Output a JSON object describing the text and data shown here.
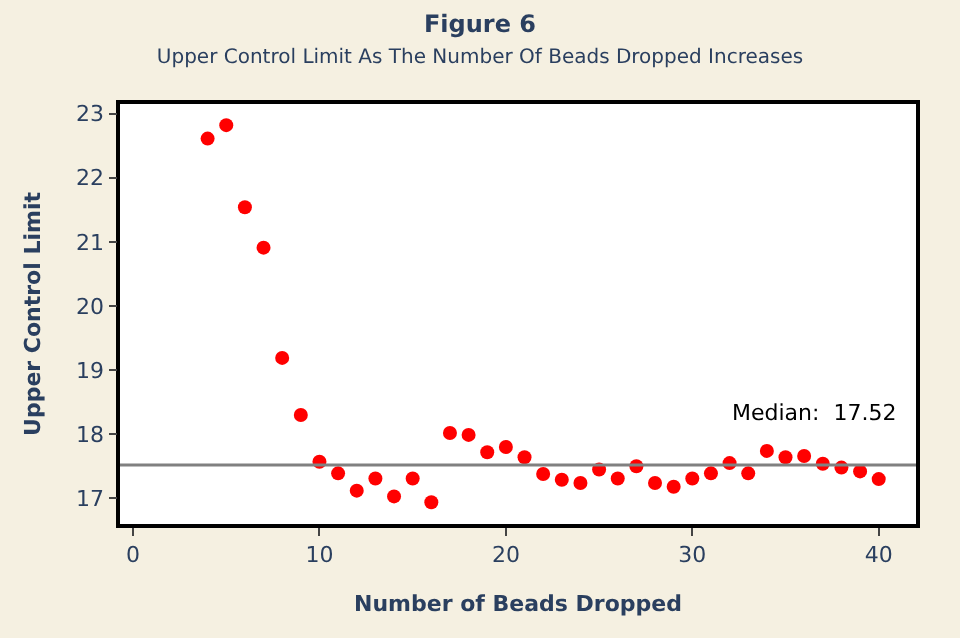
{
  "chart_data": {
    "type": "scatter",
    "title": "Figure 6",
    "subtitle": "Upper Control Limit As The Number Of Beads Dropped Increases",
    "xlabel": "Number of Beads Dropped",
    "ylabel": "Upper Control Limit",
    "x": [
      4,
      5,
      6,
      7,
      8,
      9,
      10,
      11,
      12,
      13,
      14,
      15,
      16,
      17,
      18,
      19,
      20,
      21,
      22,
      23,
      24,
      25,
      26,
      27,
      28,
      29,
      30,
      31,
      32,
      33,
      34,
      35,
      36,
      37,
      38,
      39,
      40
    ],
    "series": [
      {
        "color": "#ff0000",
        "values": [
          22.61,
          22.82,
          21.54,
          20.91,
          19.19,
          18.3,
          17.57,
          17.39,
          17.12,
          17.31,
          17.03,
          17.31,
          16.94,
          18.02,
          17.99,
          17.72,
          17.8,
          17.64,
          17.38,
          17.29,
          17.24,
          17.45,
          17.31,
          17.5,
          17.24,
          17.18,
          17.31,
          17.39,
          17.55,
          17.39,
          17.74,
          17.64,
          17.66,
          17.54,
          17.48,
          17.42,
          17.3
        ]
      }
    ],
    "xlim": [
      -0.7,
      42
    ],
    "ylim": [
      16.6,
      23.15
    ],
    "xticks": [
      0,
      10,
      20,
      30,
      40
    ],
    "yticks": [
      17,
      18,
      19,
      20,
      21,
      22,
      23
    ],
    "ref_lines": [
      {
        "axis": "y",
        "value": 17.52,
        "label": "Median:  17.52",
        "color": "#808080"
      }
    ],
    "marker": "circle"
  }
}
